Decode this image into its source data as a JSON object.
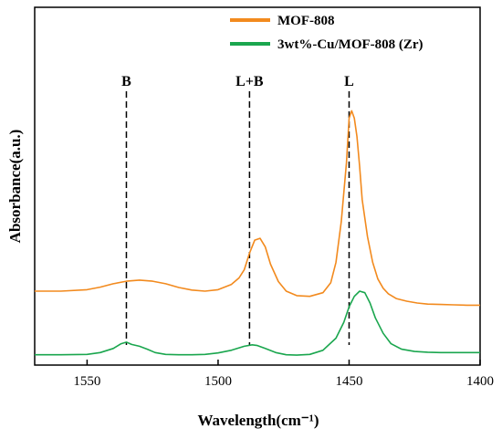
{
  "chart_data": {
    "type": "line",
    "xlabel": "Wavelength(cm⁻¹)",
    "ylabel": "Absorbance(a.u.)",
    "xlim": [
      1570,
      1400
    ],
    "x_reversed": true,
    "x_ticks": [
      1550,
      1500,
      1450,
      1400
    ],
    "y_ticks_shown": false,
    "legend_position": "top-right",
    "series": [
      {
        "name": "MOF-808",
        "color": "#f28a1e",
        "x": [
          1570,
          1560,
          1550,
          1545,
          1540,
          1535,
          1530,
          1525,
          1520,
          1515,
          1510,
          1505,
          1500,
          1495,
          1492,
          1490,
          1488,
          1486,
          1484,
          1482,
          1480,
          1477,
          1474,
          1470,
          1465,
          1460,
          1457,
          1455,
          1453,
          1451,
          1450,
          1449,
          1448,
          1447,
          1446,
          1445,
          1443,
          1441,
          1439,
          1437,
          1435,
          1432,
          1428,
          1424,
          1420,
          1415,
          1410,
          1405,
          1400
        ],
        "y": [
          0.232,
          0.232,
          0.236,
          0.243,
          0.252,
          0.259,
          0.262,
          0.259,
          0.252,
          0.242,
          0.235,
          0.232,
          0.236,
          0.25,
          0.268,
          0.29,
          0.335,
          0.37,
          0.375,
          0.352,
          0.305,
          0.258,
          0.232,
          0.22,
          0.218,
          0.228,
          0.255,
          0.31,
          0.42,
          0.58,
          0.7,
          0.72,
          0.7,
          0.65,
          0.57,
          0.48,
          0.38,
          0.31,
          0.265,
          0.24,
          0.225,
          0.212,
          0.205,
          0.2,
          0.197,
          0.196,
          0.195,
          0.194,
          0.194
        ]
      },
      {
        "name": "3wt%-Cu/MOF-808 (Zr)",
        "color": "#1aa64e",
        "x": [
          1570,
          1560,
          1550,
          1545,
          1540,
          1537,
          1535,
          1533,
          1530,
          1527,
          1524,
          1520,
          1515,
          1510,
          1505,
          1500,
          1495,
          1490,
          1487,
          1485,
          1482,
          1478,
          1474,
          1470,
          1465,
          1460,
          1455,
          1452,
          1450,
          1448,
          1446,
          1444,
          1442,
          1440,
          1437,
          1434,
          1430,
          1425,
          1420,
          1415,
          1410,
          1405,
          1400
        ],
        "y": [
          0.06,
          0.06,
          0.061,
          0.066,
          0.077,
          0.09,
          0.094,
          0.088,
          0.083,
          0.075,
          0.066,
          0.061,
          0.06,
          0.06,
          0.061,
          0.065,
          0.072,
          0.083,
          0.087,
          0.085,
          0.077,
          0.066,
          0.06,
          0.059,
          0.061,
          0.072,
          0.105,
          0.148,
          0.19,
          0.218,
          0.232,
          0.228,
          0.2,
          0.16,
          0.118,
          0.09,
          0.075,
          0.069,
          0.067,
          0.066,
          0.066,
          0.066,
          0.066
        ]
      }
    ],
    "annotations": [
      {
        "label": "B",
        "x": 1535
      },
      {
        "label": "L+B",
        "x": 1488
      },
      {
        "label": "L",
        "x": 1450
      }
    ]
  }
}
